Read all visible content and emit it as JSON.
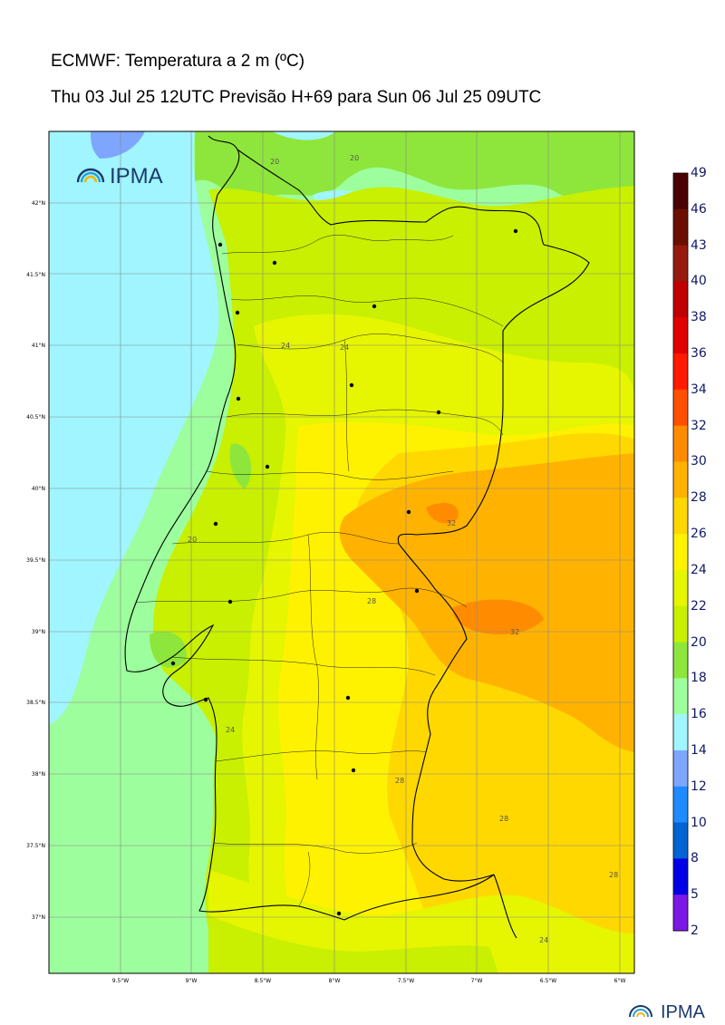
{
  "header": {
    "title": "ECMWF: Temperatura a 2 m (ºC)",
    "subtitle": "Thu 03 Jul 25 12UTC Previsão H+69 para Sun 06 Jul 25 09UTC"
  },
  "logo": {
    "text": "IPMA"
  },
  "footer_logo": {
    "text": "IPMA"
  },
  "map": {
    "lat_labels": [
      "42°N",
      "41.5°N",
      "41°N",
      "40.5°N",
      "40°N",
      "39.5°N",
      "39°N",
      "38.5°N",
      "38°N",
      "37.5°N",
      "37°N"
    ],
    "lon_labels": [
      "9.5°W",
      "9°W",
      "8.5°W",
      "8°W",
      "7.5°W",
      "7°W",
      "6.5°W",
      "6°W"
    ],
    "contour_labels": [
      "20",
      "20",
      "24",
      "24",
      "32",
      "28",
      "20",
      "32",
      "24",
      "28",
      "28",
      "28",
      "24"
    ]
  },
  "colorbar": {
    "ticks": [
      "49",
      "46",
      "43",
      "40",
      "38",
      "36",
      "34",
      "32",
      "30",
      "28",
      "26",
      "24",
      "22",
      "20",
      "18",
      "16",
      "14",
      "12",
      "10",
      "8",
      "5",
      "2"
    ],
    "colors": [
      "#4a0000",
      "#6b1000",
      "#961b0e",
      "#c00000",
      "#e10000",
      "#ff1a00",
      "#ff5000",
      "#ff8c00",
      "#ffb300",
      "#ffd800",
      "#fff200",
      "#e6f500",
      "#c8f000",
      "#8ee63c",
      "#9dfe9d",
      "#a0f5ff",
      "#7fa6ff",
      "#1e8cff",
      "#0064d2",
      "#0000e6",
      "#7a19e6",
      "#e632ff"
    ]
  }
}
